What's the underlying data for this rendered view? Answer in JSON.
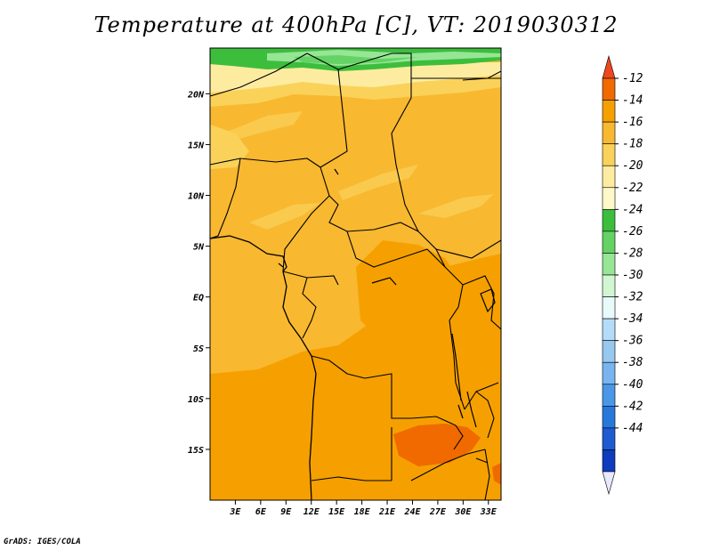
{
  "title": "Temperature at 400hPa [C], VT: 2019030312",
  "credit": "GrADS: IGES/COLA",
  "map": {
    "lon_range": [
      0,
      34.5
    ],
    "lat_range": [
      -20,
      24.5
    ],
    "x_ticks": [
      {
        "lon": 3,
        "label": "3E"
      },
      {
        "lon": 6,
        "label": "6E"
      },
      {
        "lon": 9,
        "label": "9E"
      },
      {
        "lon": 12,
        "label": "12E"
      },
      {
        "lon": 15,
        "label": "15E"
      },
      {
        "lon": 18,
        "label": "18E"
      },
      {
        "lon": 21,
        "label": "21E"
      },
      {
        "lon": 24,
        "label": "24E"
      },
      {
        "lon": 27,
        "label": "27E"
      },
      {
        "lon": 30,
        "label": "30E"
      },
      {
        "lon": 33,
        "label": "33E"
      }
    ],
    "y_ticks": [
      {
        "lat": 20,
        "label": "20N"
      },
      {
        "lat": 15,
        "label": "15N"
      },
      {
        "lat": 10,
        "label": "10N"
      },
      {
        "lat": 5,
        "label": "5N"
      },
      {
        "lat": 0,
        "label": "EQ"
      },
      {
        "lat": -5,
        "label": "5S"
      },
      {
        "lat": -10,
        "label": "10S"
      },
      {
        "lat": -15,
        "label": "15S"
      }
    ]
  },
  "colorbar": {
    "labels": [
      "-12",
      "-14",
      "-16",
      "-18",
      "-20",
      "-22",
      "-24",
      "-26",
      "-28",
      "-30",
      "-32",
      "-34",
      "-36",
      "-38",
      "-40",
      "-42",
      "-44"
    ],
    "colors": [
      "#f0461e",
      "#f06a00",
      "#f5a000",
      "#f8b830",
      "#fad25a",
      "#fdeca0",
      "#fff8c8",
      "#3cbe3c",
      "#64d264",
      "#96e696",
      "#d2f5d2",
      "#e8fafa",
      "#b4dcf8",
      "#96c8f0",
      "#78b4f0",
      "#4b96e6",
      "#2878dc",
      "#1e5ad2",
      "#0f3cbe",
      "#000a78"
    ]
  },
  "fields": {
    "green_dark": "#3cbe3c",
    "green_mid": "#64d264",
    "green_light": "#96e696",
    "pale_yellow": "#fdeca0",
    "yellow": "#fad25a",
    "light_orange": "#f8b830",
    "orange": "#f5a000",
    "dark_orange": "#f06a00",
    "red": "#f0461e",
    "border": "#000000"
  }
}
